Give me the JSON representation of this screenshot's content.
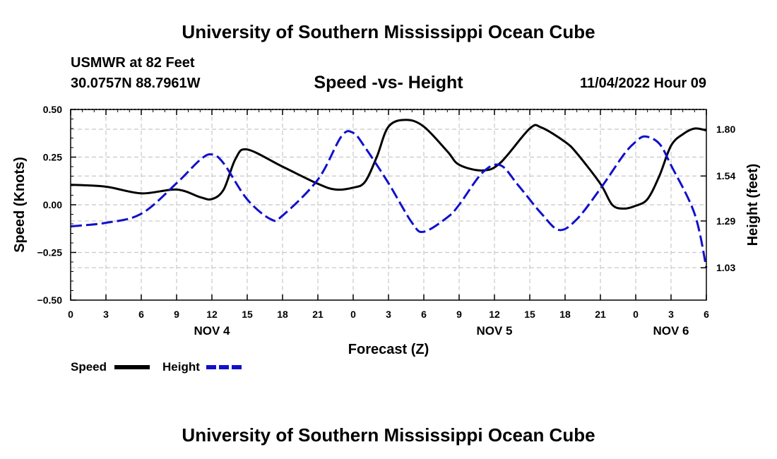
{
  "header": {
    "title": "University of Southern Mississippi Ocean Cube",
    "station": "USMWR at 82 Feet",
    "coords": "30.0757N  88.7961W",
    "subtitle": "Speed -vs- Height",
    "timestamp": "11/04/2022 Hour 09"
  },
  "footer": {
    "title": "University of Southern Mississippi Ocean Cube"
  },
  "chart_data": {
    "type": "line",
    "title": "Speed -vs- Height",
    "xlabel": "Forecast (Z)",
    "ylabel_left": "Speed (Knots)",
    "ylabel_right": "Height (feet)",
    "ylim_left": [
      -0.5,
      0.5
    ],
    "ylim_right": [
      0.85,
      1.91
    ],
    "xlim": [
      0,
      54
    ],
    "grid": true,
    "x_ticks": [
      0,
      3,
      6,
      9,
      12,
      15,
      18,
      21,
      24,
      27,
      30,
      33,
      36,
      39,
      42,
      45,
      48,
      51,
      54
    ],
    "x_tick_labels": [
      "0",
      "3",
      "6",
      "9",
      "12",
      "15",
      "18",
      "21",
      "0",
      "3",
      "6",
      "9",
      "12",
      "15",
      "18",
      "21",
      "0",
      "3",
      "6"
    ],
    "y_ticks_left": [
      0.5,
      0.25,
      0.0,
      -0.25,
      -0.5
    ],
    "y_tick_labels_left": [
      "0.50",
      "0.25",
      "0.00",
      "−0.25",
      "−0.50"
    ],
    "y_ticks_right": [
      1.8,
      1.54,
      1.29,
      1.03
    ],
    "y_tick_labels_right": [
      "1.80",
      "1.54",
      "1.29",
      "1.03"
    ],
    "date_labels": [
      {
        "label": "NOV 4",
        "x": 12
      },
      {
        "label": "NOV 5",
        "x": 36
      },
      {
        "label": "NOV 6",
        "x": 51
      }
    ],
    "series": [
      {
        "name": "Speed",
        "axis": "left",
        "color": "#000000",
        "dash": "solid",
        "points": [
          [
            0,
            0.105
          ],
          [
            3,
            0.095
          ],
          [
            6,
            0.06
          ],
          [
            9,
            0.08
          ],
          [
            11,
            0.04
          ],
          [
            12,
            0.03
          ],
          [
            13,
            0.08
          ],
          [
            14,
            0.24
          ],
          [
            15,
            0.29
          ],
          [
            18,
            0.2
          ],
          [
            21,
            0.11
          ],
          [
            22.5,
            0.08
          ],
          [
            24,
            0.09
          ],
          [
            25,
            0.12
          ],
          [
            26,
            0.25
          ],
          [
            27,
            0.41
          ],
          [
            28.5,
            0.445
          ],
          [
            30,
            0.41
          ],
          [
            32,
            0.28
          ],
          [
            33,
            0.21
          ],
          [
            35,
            0.18
          ],
          [
            36.5,
            0.22
          ],
          [
            39,
            0.4
          ],
          [
            40,
            0.405
          ],
          [
            42,
            0.33
          ],
          [
            43,
            0.27
          ],
          [
            45,
            0.11
          ],
          [
            46,
            0.0
          ],
          [
            47,
            -0.02
          ],
          [
            48,
            -0.005
          ],
          [
            49,
            0.03
          ],
          [
            50,
            0.15
          ],
          [
            51,
            0.31
          ],
          [
            52,
            0.37
          ],
          [
            53,
            0.4
          ],
          [
            54,
            0.39
          ]
        ]
      },
      {
        "name": "Height",
        "axis": "right",
        "color": "#1010cc",
        "dash": "dashed",
        "points": [
          [
            0,
            1.26
          ],
          [
            3,
            1.28
          ],
          [
            6,
            1.33
          ],
          [
            9,
            1.5
          ],
          [
            11,
            1.63
          ],
          [
            12,
            1.66
          ],
          [
            13,
            1.61
          ],
          [
            15,
            1.41
          ],
          [
            17,
            1.3
          ],
          [
            18,
            1.32
          ],
          [
            21,
            1.52
          ],
          [
            23,
            1.76
          ],
          [
            24,
            1.78
          ],
          [
            25,
            1.7
          ],
          [
            27,
            1.5
          ],
          [
            29,
            1.28
          ],
          [
            30,
            1.23
          ],
          [
            32,
            1.31
          ],
          [
            33,
            1.38
          ],
          [
            35,
            1.56
          ],
          [
            36.5,
            1.6
          ],
          [
            38,
            1.49
          ],
          [
            40,
            1.33
          ],
          [
            41.5,
            1.24
          ],
          [
            43,
            1.3
          ],
          [
            45,
            1.47
          ],
          [
            47,
            1.66
          ],
          [
            48,
            1.73
          ],
          [
            48.8,
            1.76
          ],
          [
            50,
            1.72
          ],
          [
            51,
            1.6
          ],
          [
            53,
            1.33
          ],
          [
            54,
            1.03
          ]
        ]
      }
    ],
    "legend": {
      "placement": "bottom-left",
      "entries": [
        {
          "label": "Speed",
          "color": "#000000"
        },
        {
          "label": "Height",
          "color": "#1010cc"
        }
      ]
    }
  }
}
